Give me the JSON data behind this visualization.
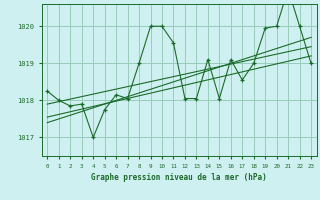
{
  "title": "Graphe pression niveau de la mer (hPa)",
  "bg_color": "#cff0f0",
  "grid_color": "#99ccbb",
  "line_color": "#1a6b2a",
  "xlim": [
    -0.5,
    23.5
  ],
  "ylim": [
    1016.5,
    1020.6
  ],
  "yticks": [
    1017,
    1018,
    1019,
    1020
  ],
  "xticks": [
    0,
    1,
    2,
    3,
    4,
    5,
    6,
    7,
    8,
    9,
    10,
    11,
    12,
    13,
    14,
    15,
    16,
    17,
    18,
    19,
    20,
    21,
    22,
    23
  ],
  "series1": {
    "x": [
      0,
      1,
      2,
      3,
      4,
      5,
      6,
      7,
      8,
      9,
      10,
      11,
      12,
      13,
      14,
      15,
      16,
      17,
      18,
      19,
      20,
      21,
      22,
      23
    ],
    "y": [
      1018.25,
      1018.0,
      1017.85,
      1017.9,
      1017.0,
      1017.75,
      1018.15,
      1018.05,
      1019.0,
      1020.0,
      1020.0,
      1019.55,
      1018.05,
      1018.05,
      1019.1,
      1018.05,
      1019.1,
      1018.55,
      1019.0,
      1019.95,
      1020.0,
      1021.0,
      1020.0,
      1019.0
    ]
  },
  "trend1": {
    "x": [
      0,
      23
    ],
    "y": [
      1017.55,
      1019.2
    ]
  },
  "trend2": {
    "x": [
      0,
      23
    ],
    "y": [
      1017.4,
      1019.7
    ]
  },
  "trend3": {
    "x": [
      0,
      23
    ],
    "y": [
      1017.9,
      1019.45
    ]
  }
}
